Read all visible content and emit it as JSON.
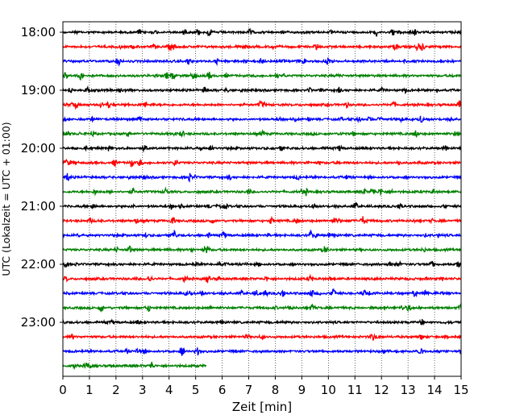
{
  "chart_data": {
    "type": "line",
    "title": "",
    "xlabel": "Zeit  [min]",
    "ylabel": "UTC (Lokalzeit = UTC + 01:00)",
    "xlim": [
      0,
      15
    ],
    "x_ticks": [
      "0",
      "1",
      "2",
      "3",
      "4",
      "5",
      "6",
      "7",
      "8",
      "9",
      "10",
      "11",
      "12",
      "13",
      "14",
      "15"
    ],
    "y_tick_labels": [
      "18:00",
      "19:00",
      "20:00",
      "21:00",
      "22:00",
      "23:00"
    ],
    "grid": "vertical dotted at each minute",
    "legend": "none",
    "trace_interval_minutes": 15,
    "trace_colors": [
      "#000000",
      "#ff0000",
      "#0000ff",
      "#008000"
    ],
    "series": [
      {
        "start": "17:45",
        "duration_min": 15,
        "color": "#000000"
      },
      {
        "start": "18:00",
        "duration_min": 15,
        "color": "#ff0000"
      },
      {
        "start": "18:15",
        "duration_min": 15,
        "color": "#0000ff"
      },
      {
        "start": "18:30",
        "duration_min": 15,
        "color": "#008000"
      },
      {
        "start": "18:45",
        "duration_min": 15,
        "color": "#000000"
      },
      {
        "start": "19:00",
        "duration_min": 15,
        "color": "#ff0000"
      },
      {
        "start": "19:15",
        "duration_min": 15,
        "color": "#0000ff"
      },
      {
        "start": "19:30",
        "duration_min": 15,
        "color": "#008000"
      },
      {
        "start": "19:45",
        "duration_min": 15,
        "color": "#000000"
      },
      {
        "start": "20:00",
        "duration_min": 15,
        "color": "#ff0000"
      },
      {
        "start": "20:15",
        "duration_min": 15,
        "color": "#0000ff"
      },
      {
        "start": "20:30",
        "duration_min": 15,
        "color": "#008000"
      },
      {
        "start": "20:45",
        "duration_min": 15,
        "color": "#000000"
      },
      {
        "start": "21:00",
        "duration_min": 15,
        "color": "#ff0000"
      },
      {
        "start": "21:15",
        "duration_min": 15,
        "color": "#0000ff"
      },
      {
        "start": "21:30",
        "duration_min": 15,
        "color": "#008000"
      },
      {
        "start": "21:45",
        "duration_min": 15,
        "color": "#000000"
      },
      {
        "start": "22:00",
        "duration_min": 15,
        "color": "#ff0000"
      },
      {
        "start": "22:15",
        "duration_min": 15,
        "color": "#0000ff"
      },
      {
        "start": "22:30",
        "duration_min": 15,
        "color": "#008000"
      },
      {
        "start": "22:45",
        "duration_min": 15,
        "color": "#000000"
      },
      {
        "start": "23:00",
        "duration_min": 15,
        "color": "#ff0000"
      },
      {
        "start": "23:15",
        "duration_min": 15,
        "color": "#0000ff"
      },
      {
        "start": "23:30",
        "duration_min": 5.4,
        "color": "#008000"
      }
    ]
  }
}
